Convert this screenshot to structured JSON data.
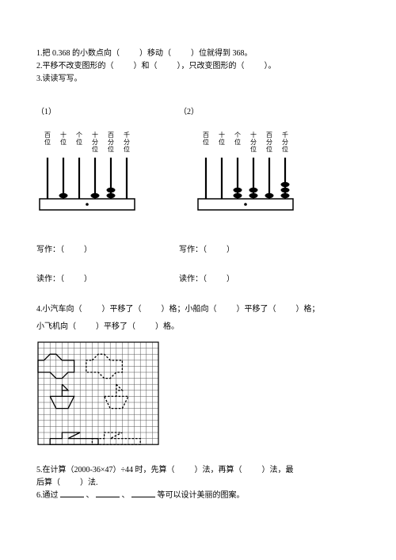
{
  "q1": {
    "prefix": "1.把 0.368 的小数点向（",
    "mid1": "）移动（",
    "mid2": "）位就得到 368。"
  },
  "q2": {
    "prefix": "2.平移不改变图形的（",
    "mid1": "）和（",
    "mid2": "），只改变图形的（",
    "end": "）。"
  },
  "q3": "3.读读写写。",
  "labels": {
    "l1": "（1）",
    "l2": "（2）"
  },
  "abacus_labels": [
    "百位",
    "十位",
    "个位",
    "十分位",
    "百分位",
    "千分位"
  ],
  "abacus": {
    "left_beads": [
      0,
      1,
      0,
      1,
      2,
      0
    ],
    "right_beads": [
      0,
      0,
      2,
      2,
      1,
      3
    ],
    "rod_color": "#000",
    "bead_color": "#000",
    "base_color": "#000"
  },
  "write_label": "写作：（",
  "write_end": "）",
  "read_label": "读作：（",
  "read_end": "）",
  "q4": {
    "l1_a": "4.小汽车向（",
    "l1_b": "）平移了（",
    "l1_c": "）格；小船向（",
    "l1_d": "）平移了（",
    "l1_e": "）格；",
    "l2_a": "小飞机向（",
    "l2_b": "）平移了（",
    "l2_c": "）格。"
  },
  "grid": {
    "rows": 17,
    "cols": 20,
    "cell": 7.6,
    "stroke": "#555",
    "car_solid": [
      [
        1,
        3
      ],
      [
        2,
        2
      ],
      [
        3,
        2
      ],
      [
        4,
        3
      ],
      [
        6,
        3
      ],
      [
        6,
        5
      ],
      [
        5,
        5
      ],
      [
        4,
        6
      ],
      [
        3,
        6
      ],
      [
        2,
        5
      ],
      [
        0,
        5
      ],
      [
        0,
        3
      ],
      [
        1,
        3
      ]
    ],
    "car_dashed_dx": 8,
    "boat_solid": [
      [
        2,
        9
      ],
      [
        6,
        9
      ],
      [
        5,
        11
      ],
      [
        3,
        11
      ],
      [
        2,
        9
      ]
    ],
    "boat_mast": [
      [
        4,
        7
      ],
      [
        4,
        9
      ]
    ],
    "boat_sail": [
      [
        4,
        7
      ],
      [
        5,
        8
      ],
      [
        4,
        8
      ]
    ],
    "boat_dashed_dx": 9,
    "plane_solid": [
      [
        2,
        14
      ],
      [
        4,
        14
      ],
      [
        4,
        13
      ],
      [
        7,
        13
      ],
      [
        5,
        14
      ],
      [
        10,
        14
      ],
      [
        10,
        15
      ],
      [
        2,
        15
      ],
      [
        2,
        14
      ]
    ],
    "plane_dashed_dy": -1,
    "plane_dashed_dx": 7
  },
  "q5": {
    "a": "5.在计算（2000-36×47）÷44 时，先算（",
    "b": "）法，再算（",
    "c": "）法，最",
    "d": "后算（",
    "e": "）法."
  },
  "q6": {
    "a": "6.通过",
    "b": "、",
    "c": "、",
    "d": "等可以设计美丽的图案。"
  },
  "underline_width": 30
}
